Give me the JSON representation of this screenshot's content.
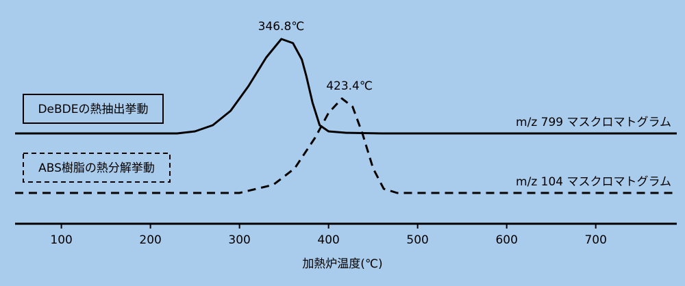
{
  "chart_data": {
    "type": "line",
    "xlabel": "加熱炉温度(℃)",
    "xlim": [
      48,
      791
    ],
    "ylim": [
      0,
      100
    ],
    "xticks": [
      100,
      200,
      300,
      400,
      500,
      600,
      700
    ],
    "grid": false,
    "series": [
      {
        "name": "DeBDEの熱抽出挙動",
        "trace_label": "m/z 799 マスクロマトグラム",
        "color": "#000000",
        "line_style": "solid",
        "peak": {
          "value": 346.8,
          "label": "346.8℃"
        },
        "x": [
          48,
          230,
          250,
          270,
          290,
          310,
          330,
          347,
          360,
          370,
          375,
          382,
          390,
          400,
          420,
          460,
          791
        ],
        "values": [
          44,
          44,
          45,
          48,
          55,
          67,
          81,
          90,
          88,
          80,
          72,
          59,
          48,
          45,
          44.3,
          44,
          44
        ]
      },
      {
        "name": "ABS樹脂の熱分解挙動",
        "trace_label": "m/z 104 マスクロマトグラム",
        "color": "#000000",
        "line_style": "dashed",
        "peak": {
          "value": 423.4,
          "label": "423.4℃"
        },
        "x": [
          48,
          300,
          338,
          362,
          385,
          400,
          415,
          427,
          438,
          450,
          462,
          477,
          791
        ],
        "values": [
          15,
          15,
          19,
          27,
          42,
          54,
          61,
          57,
          44,
          27,
          17,
          15,
          15
        ]
      }
    ]
  }
}
